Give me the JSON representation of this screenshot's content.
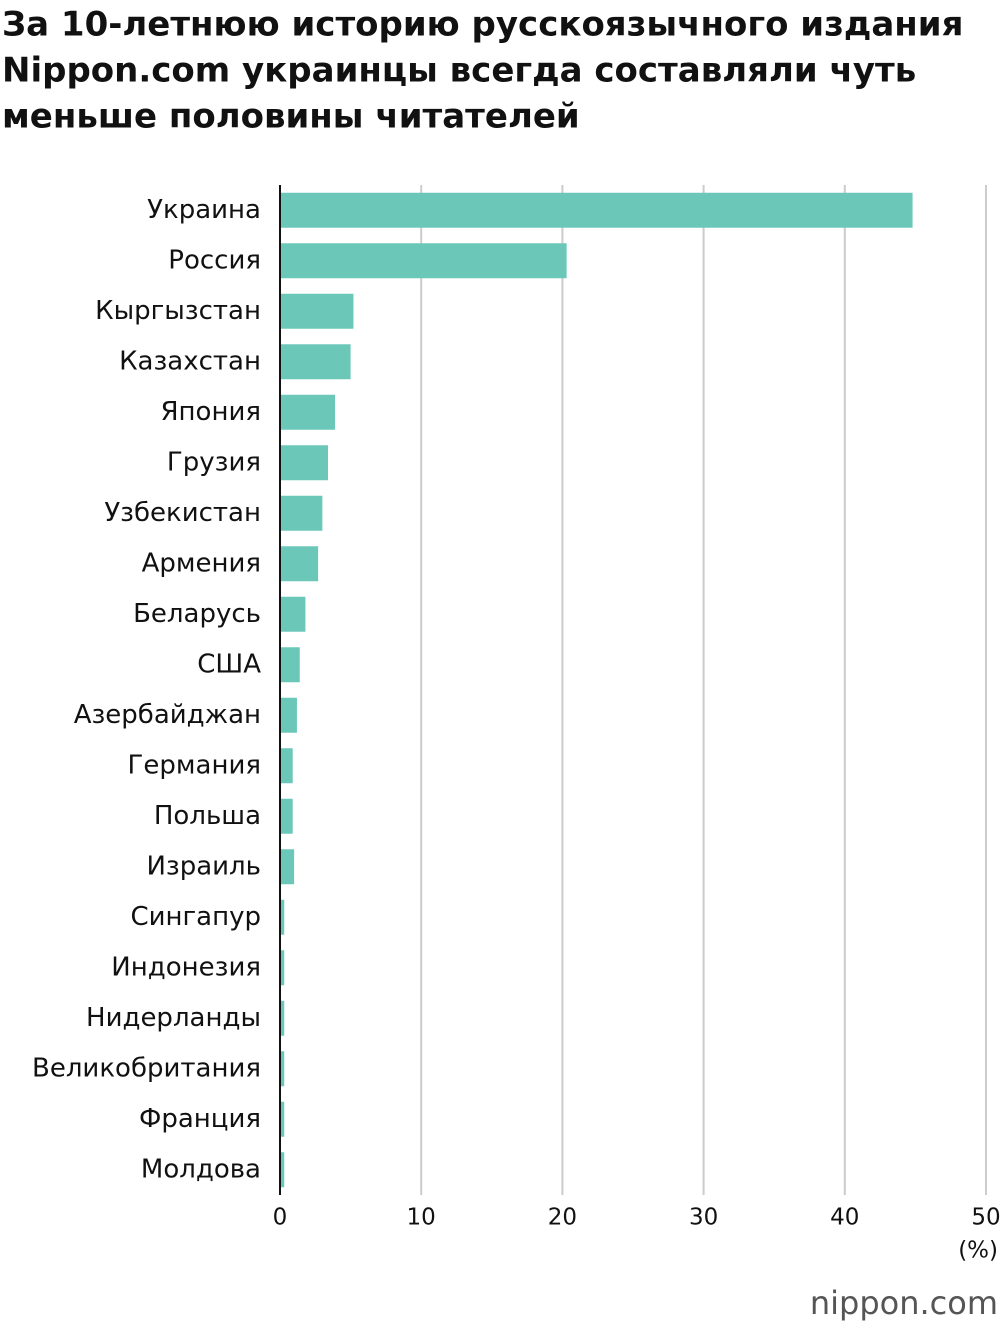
{
  "chart_data": {
    "type": "bar",
    "orientation": "horizontal",
    "title": [
      "За 10-летнюю историю русскоязычного издания",
      "Nippon.com украинцы всегда составляли чуть",
      "меньше половины читателей"
    ],
    "categories": [
      "Украина",
      "Россия",
      "Кыргызстан",
      "Казахстан",
      "Япония",
      "Грузия",
      "Узбекистан",
      "Армения",
      "Беларусь",
      "США",
      "Азербайджан",
      "Германия",
      "Польша",
      "Израиль",
      "Сингапур",
      "Индонезия",
      "Нидерланды",
      "Великобритания",
      "Франция",
      "Молдова"
    ],
    "values": [
      44.8,
      20.3,
      5.2,
      5.0,
      3.9,
      3.4,
      3.0,
      2.7,
      1.8,
      1.4,
      1.2,
      0.9,
      0.9,
      1.0,
      0.3,
      0.3,
      0.3,
      0.3,
      0.3,
      0.3
    ],
    "color": "#6bc8b9",
    "xlim": [
      0,
      50
    ],
    "xticks": [
      0,
      10,
      20,
      30,
      40,
      50
    ],
    "x_label": "(%)",
    "grid": true,
    "logo": "nippon.com"
  }
}
